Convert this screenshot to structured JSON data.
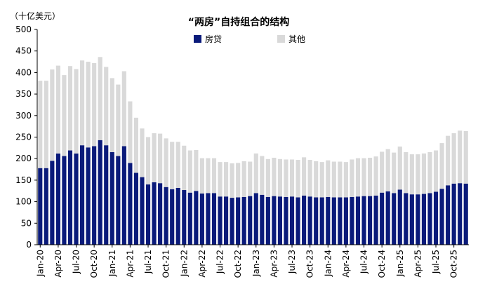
{
  "chart_data": {
    "type": "bar",
    "stacked": true,
    "title": "“两房”自持组合的结构",
    "unit_label": "（十亿美元）",
    "xlabel": "",
    "ylabel": "",
    "ylim": [
      0,
      500
    ],
    "yticks": [
      0,
      50,
      100,
      150,
      200,
      250,
      300,
      350,
      400,
      450,
      500
    ],
    "grid": false,
    "legend_position": "top",
    "x_tick_labels": [
      "Jan-20",
      "Apr-20",
      "Jul-20",
      "Oct-20",
      "Jan-21",
      "Apr-21",
      "Jul-21",
      "Oct-21",
      "Jan-22",
      "Apr-22",
      "Jul-22",
      "Oct-22",
      "Jan-23",
      "Apr-23",
      "Jul-23",
      "Oct-23",
      "Jan-24",
      "Apr-24",
      "Jul-24",
      "Oct-24",
      "Jan-25",
      "Apr-25",
      "Jul-25",
      "Oct-25"
    ],
    "categories": [
      "Jan-20",
      "Feb-20",
      "Mar-20",
      "Apr-20",
      "May-20",
      "Jun-20",
      "Jul-20",
      "Aug-20",
      "Sep-20",
      "Oct-20",
      "Nov-20",
      "Dec-20",
      "Jan-21",
      "Feb-21",
      "Mar-21",
      "Apr-21",
      "May-21",
      "Jun-21",
      "Jul-21",
      "Aug-21",
      "Sep-21",
      "Oct-21",
      "Nov-21",
      "Dec-21",
      "Jan-22",
      "Feb-22",
      "Mar-22",
      "Apr-22",
      "May-22",
      "Jun-22",
      "Jul-22",
      "Aug-22",
      "Sep-22",
      "Oct-22",
      "Nov-22",
      "Dec-22",
      "Jan-23",
      "Feb-23",
      "Mar-23",
      "Apr-23",
      "May-23",
      "Jun-23",
      "Jul-23",
      "Aug-23",
      "Sep-23",
      "Oct-23",
      "Nov-23",
      "Dec-23",
      "Jan-24",
      "Feb-24",
      "Mar-24",
      "Apr-24",
      "May-24",
      "Jun-24",
      "Jul-24",
      "Aug-24",
      "Sep-24",
      "Oct-24",
      "Nov-24",
      "Dec-24",
      "Jan-25",
      "Feb-25",
      "Mar-25",
      "Apr-25",
      "May-25",
      "Jun-25",
      "Jul-25",
      "Aug-25",
      "Sep-25",
      "Oct-25",
      "Nov-25",
      "Dec-25"
    ],
    "series": [
      {
        "name": "房贷",
        "color": "#0a1a7a",
        "values": [
          178,
          178,
          195,
          212,
          206,
          219,
          212,
          231,
          226,
          229,
          243,
          231,
          215,
          206,
          229,
          190,
          167,
          157,
          140,
          145,
          143,
          134,
          129,
          132,
          127,
          121,
          125,
          119,
          120,
          120,
          112,
          112,
          109,
          110,
          111,
          113,
          120,
          116,
          111,
          113,
          112,
          111,
          112,
          110,
          114,
          112,
          110,
          110,
          111,
          110,
          110,
          110,
          111,
          112,
          113,
          113,
          114,
          121,
          124,
          120,
          128,
          120,
          117,
          117,
          118,
          120,
          123,
          130,
          138,
          142,
          143,
          142
        ]
      },
      {
        "name": "其他",
        "color": "#d9d9d9",
        "values": [
          203,
          203,
          212,
          204,
          188,
          196,
          196,
          197,
          199,
          193,
          193,
          182,
          172,
          166,
          174,
          143,
          128,
          113,
          110,
          114,
          115,
          113,
          110,
          107,
          103,
          98,
          95,
          82,
          81,
          81,
          80,
          80,
          80,
          80,
          83,
          80,
          92,
          90,
          88,
          89,
          87,
          87,
          86,
          87,
          89,
          85,
          84,
          82,
          85,
          83,
          83,
          82,
          87,
          89,
          88,
          89,
          91,
          95,
          98,
          94,
          100,
          95,
          93,
          93,
          94,
          95,
          96,
          106,
          115,
          117,
          122,
          122
        ]
      }
    ]
  }
}
